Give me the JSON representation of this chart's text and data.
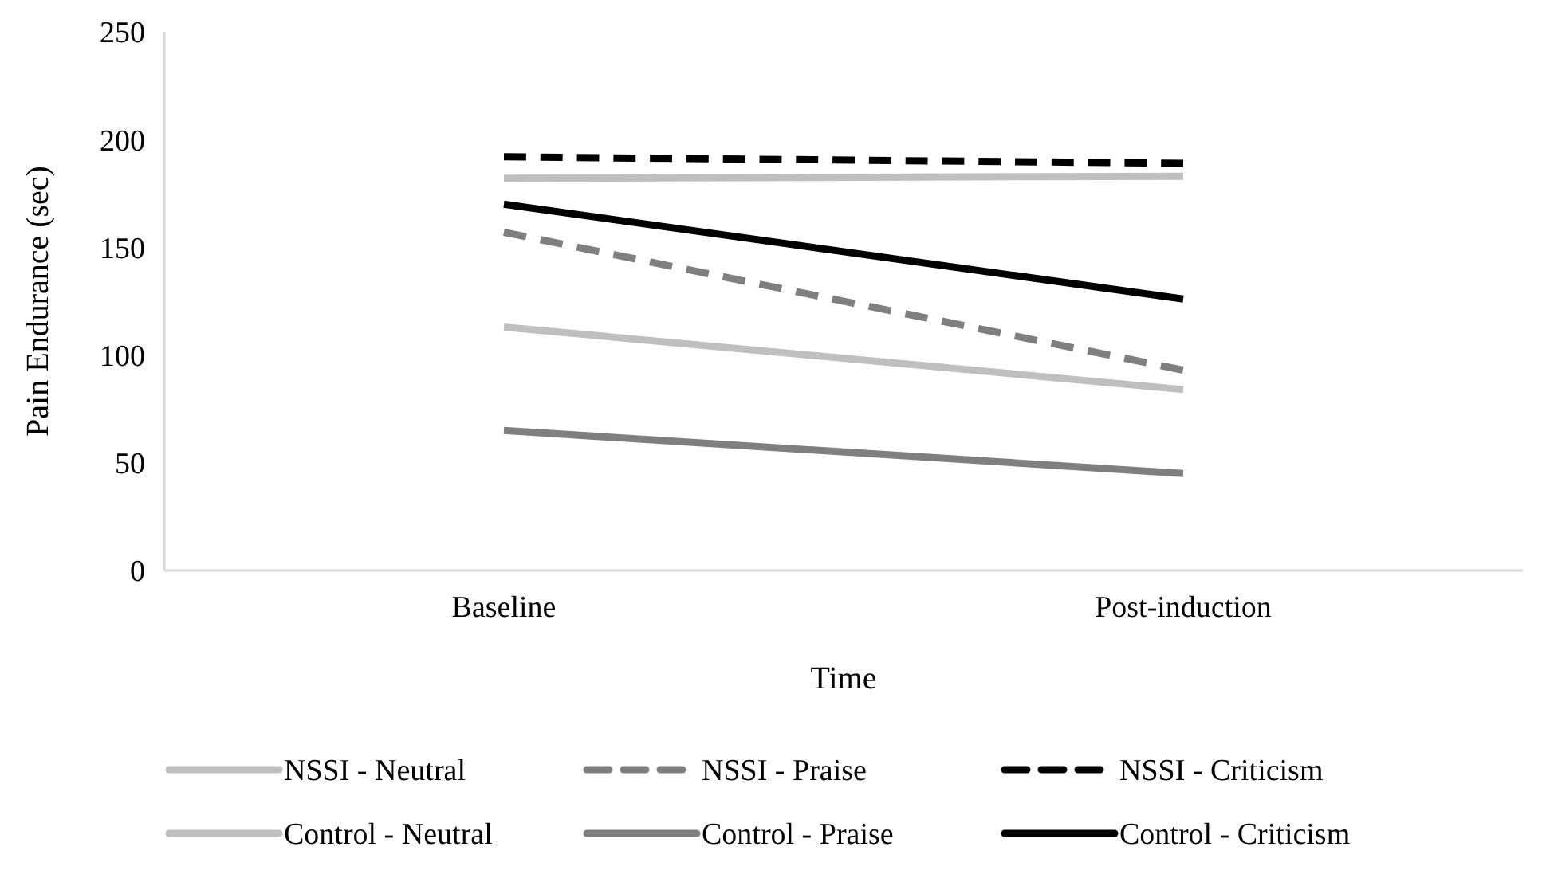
{
  "chart_data": {
    "type": "line",
    "xlabel": "Time",
    "ylabel": "Pain Endurance (sec)",
    "categories": [
      "Baseline",
      "Post-induction"
    ],
    "ylim": [
      0,
      250
    ],
    "yticks": [
      0,
      50,
      100,
      150,
      200,
      250
    ],
    "grid": false,
    "legend": "bottom",
    "marker": "none",
    "series": [
      {
        "name": "NSSI - Neutral",
        "color": "#bfbfbf",
        "line_style": "solid",
        "values": [
          182,
          183
        ]
      },
      {
        "name": "NSSI - Praise",
        "color": "#7f7f7f",
        "line_style": "dashed",
        "values": [
          157,
          93
        ]
      },
      {
        "name": "NSSI - Criticism",
        "color": "#000000",
        "line_style": "dashed",
        "values": [
          192,
          189
        ]
      },
      {
        "name": "Control - Neutral",
        "color": "#bfbfbf",
        "line_style": "solid",
        "values": [
          113,
          84
        ]
      },
      {
        "name": "Control - Praise",
        "color": "#7f7f7f",
        "line_style": "solid",
        "values": [
          65,
          45
        ]
      },
      {
        "name": "Control - Criticism",
        "color": "#000000",
        "line_style": "solid",
        "values": [
          170,
          126
        ]
      }
    ]
  }
}
